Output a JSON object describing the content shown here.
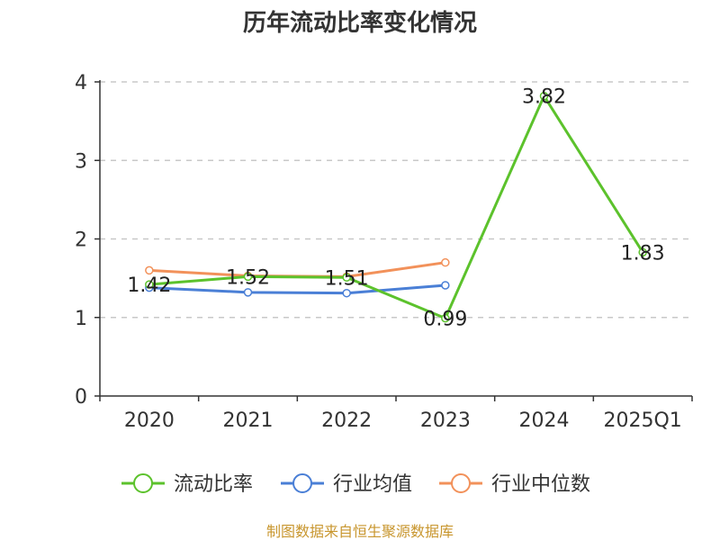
{
  "chart_data": {
    "type": "line",
    "title": "历年流动比率变化情况",
    "categories": [
      "2020",
      "2021",
      "2022",
      "2023",
      "2024",
      "2025Q1"
    ],
    "ylim": [
      0,
      4
    ],
    "yticks": [
      "0",
      "1",
      "2",
      "3",
      "4"
    ],
    "grid": true,
    "legend_position": "bottom",
    "series": [
      {
        "name": "流动比率",
        "color": "#5cc22c",
        "values": [
          1.42,
          1.52,
          1.51,
          0.99,
          3.82,
          1.83
        ],
        "labels": [
          "1.42",
          "1.52",
          "1.51",
          "0.99",
          "3.82",
          "1.83"
        ]
      },
      {
        "name": "行业均值",
        "color": "#4a7fd6",
        "values": [
          1.38,
          1.32,
          1.31,
          1.41,
          null,
          null
        ]
      },
      {
        "name": "行业中位数",
        "color": "#f2915a",
        "values": [
          1.6,
          1.53,
          1.52,
          1.7,
          null,
          null
        ]
      }
    ]
  },
  "source": "制图数据来自恒生聚源数据库"
}
